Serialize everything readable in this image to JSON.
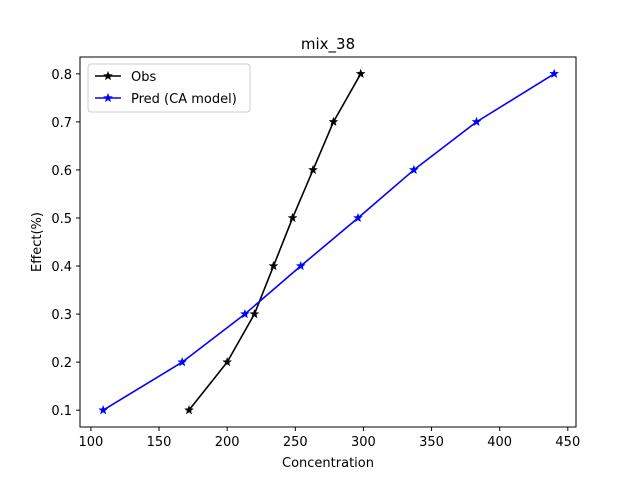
{
  "chart_data": {
    "type": "line",
    "title": "mix_38",
    "xlabel": "Concentration",
    "ylabel": "Effect(%)",
    "xlim": [
      92,
      456
    ],
    "ylim": [
      0.065,
      0.835
    ],
    "xticks": [
      100,
      150,
      200,
      250,
      300,
      350,
      400,
      450
    ],
    "xtick_labels": [
      "100",
      "150",
      "200",
      "250",
      "300",
      "350",
      "400",
      "450"
    ],
    "yticks": [
      0.1,
      0.2,
      0.3,
      0.4,
      0.5,
      0.6,
      0.7,
      0.8
    ],
    "ytick_labels": [
      "0.1",
      "0.2",
      "0.3",
      "0.4",
      "0.5",
      "0.6",
      "0.7",
      "0.8"
    ],
    "grid": false,
    "legend_position": "upper-left",
    "marker": "star",
    "series": [
      {
        "name": "Obs",
        "color": "#000000",
        "x": [
          172,
          200,
          220,
          234,
          248,
          263,
          278,
          298
        ],
        "y": [
          0.1,
          0.2,
          0.3,
          0.4,
          0.5,
          0.6,
          0.7,
          0.8
        ]
      },
      {
        "name": "Pred (CA model)",
        "color": "#0000ff",
        "x": [
          109,
          167,
          213,
          254,
          296,
          337,
          383,
          440
        ],
        "y": [
          0.1,
          0.2,
          0.3,
          0.4,
          0.5,
          0.6,
          0.7,
          0.8
        ]
      }
    ]
  }
}
